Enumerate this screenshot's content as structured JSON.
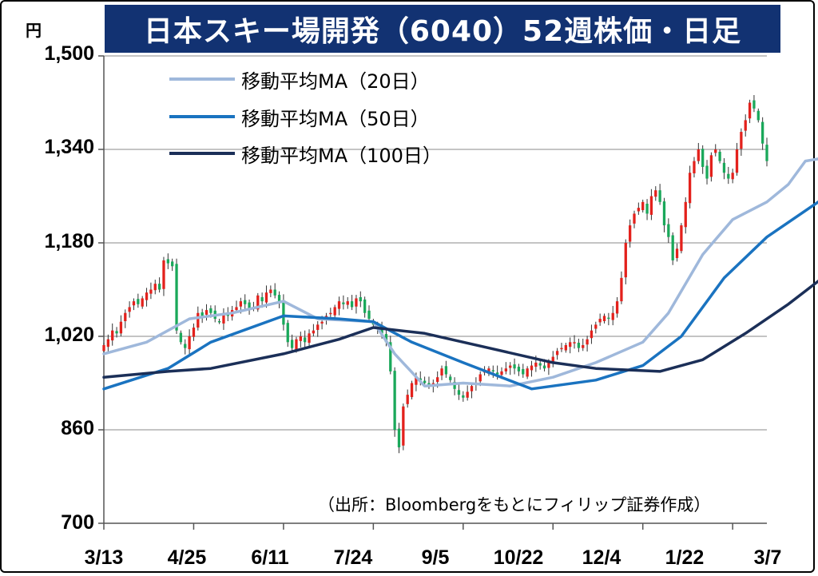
{
  "title": "日本スキー場開発（6040）52週株価・日足",
  "unit_label": "円",
  "source_note": "（出所：Bloombergをもとにフィリップ証券作成）",
  "colors": {
    "title_bg": "#123272",
    "up": "#e3211c",
    "down": "#1aa85a",
    "ma20": "#9fb8db",
    "ma50": "#1a73c0",
    "ma100": "#1b2f58"
  },
  "chart_data": {
    "type": "line",
    "title": "日本スキー場開発（6040）52週株価・日足",
    "ylabel": "円",
    "ylim": [
      700,
      1500
    ],
    "y_ticks": [
      "1,500",
      "1,340",
      "1,180",
      "1,020",
      "860",
      "700"
    ],
    "x_ticks": [
      "3/13",
      "4/25",
      "6/11",
      "7/24",
      "9/5",
      "10/22",
      "12/4",
      "1/22",
      "3/7"
    ],
    "grid": "horizontal",
    "legend_position": "top-left",
    "x_index": [
      0,
      21,
      42,
      63,
      84,
      105,
      126,
      147,
      168
    ],
    "daily_close": [
      1005,
      1015,
      1030,
      1025,
      1045,
      1060,
      1070,
      1080,
      1075,
      1085,
      1095,
      1100,
      1110,
      1100,
      1150,
      1145,
      1140,
      1030,
      1010,
      1000,
      1020,
      1035,
      1060,
      1055,
      1065,
      1060,
      1050,
      1045,
      1060,
      1055,
      1065,
      1070,
      1080,
      1075,
      1065,
      1070,
      1090,
      1080,
      1095,
      1100,
      1090,
      1080,
      1040,
      1010,
      1000,
      1015,
      1020,
      1010,
      1025,
      1030,
      1040,
      1045,
      1055,
      1060,
      1070,
      1080,
      1075,
      1080,
      1070,
      1085,
      1080,
      1060,
      1050,
      1040,
      1035,
      1025,
      1010,
      960,
      860,
      830,
      900,
      920,
      940,
      950,
      945,
      940,
      935,
      940,
      950,
      965,
      955,
      945,
      930,
      920,
      915,
      925,
      935,
      940,
      955,
      960,
      965,
      960,
      955,
      960,
      965,
      970,
      965,
      960,
      955,
      965,
      970,
      975,
      970,
      965,
      975,
      985,
      995,
      1000,
      1005,
      1010,
      1010,
      1000,
      1005,
      1015,
      1030,
      1040,
      1050,
      1055,
      1050,
      1060,
      1080,
      1120,
      1180,
      1210,
      1230,
      1240,
      1250,
      1230,
      1260,
      1270,
      1250,
      1210,
      1190,
      1150,
      1170,
      1210,
      1250,
      1300,
      1320,
      1340,
      1310,
      1290,
      1330,
      1340,
      1320,
      1300,
      1290,
      1300,
      1340,
      1370,
      1390,
      1420,
      1410,
      1390,
      1350,
      1320
    ],
    "series": [
      {
        "name": "移動平均MA（20日）",
        "x": [
          0,
          10,
          20,
          30,
          42,
          50,
          63,
          68,
          75,
          84,
          95,
          105,
          115,
          126,
          132,
          140,
          147,
          155,
          160,
          164,
          168
        ],
        "values": [
          990,
          1010,
          1050,
          1060,
          1080,
          1050,
          1045,
          990,
          935,
          940,
          935,
          950,
          975,
          1010,
          1060,
          1160,
          1220,
          1250,
          1280,
          1320,
          1325
        ]
      },
      {
        "name": "移動平均MA（50日）",
        "x": [
          0,
          15,
          25,
          42,
          55,
          63,
          72,
          84,
          100,
          115,
          126,
          135,
          145,
          155,
          168
        ],
        "values": [
          930,
          965,
          1010,
          1055,
          1050,
          1045,
          1010,
          975,
          930,
          945,
          970,
          1020,
          1120,
          1190,
          1255
        ]
      },
      {
        "name": "移動平均MA（100日）",
        "x": [
          0,
          15,
          25,
          42,
          55,
          63,
          75,
          90,
          105,
          115,
          130,
          140,
          150,
          160,
          168
        ],
        "values": [
          950,
          960,
          965,
          990,
          1015,
          1035,
          1025,
          1000,
          975,
          965,
          960,
          980,
          1025,
          1075,
          1120
        ]
      }
    ]
  }
}
